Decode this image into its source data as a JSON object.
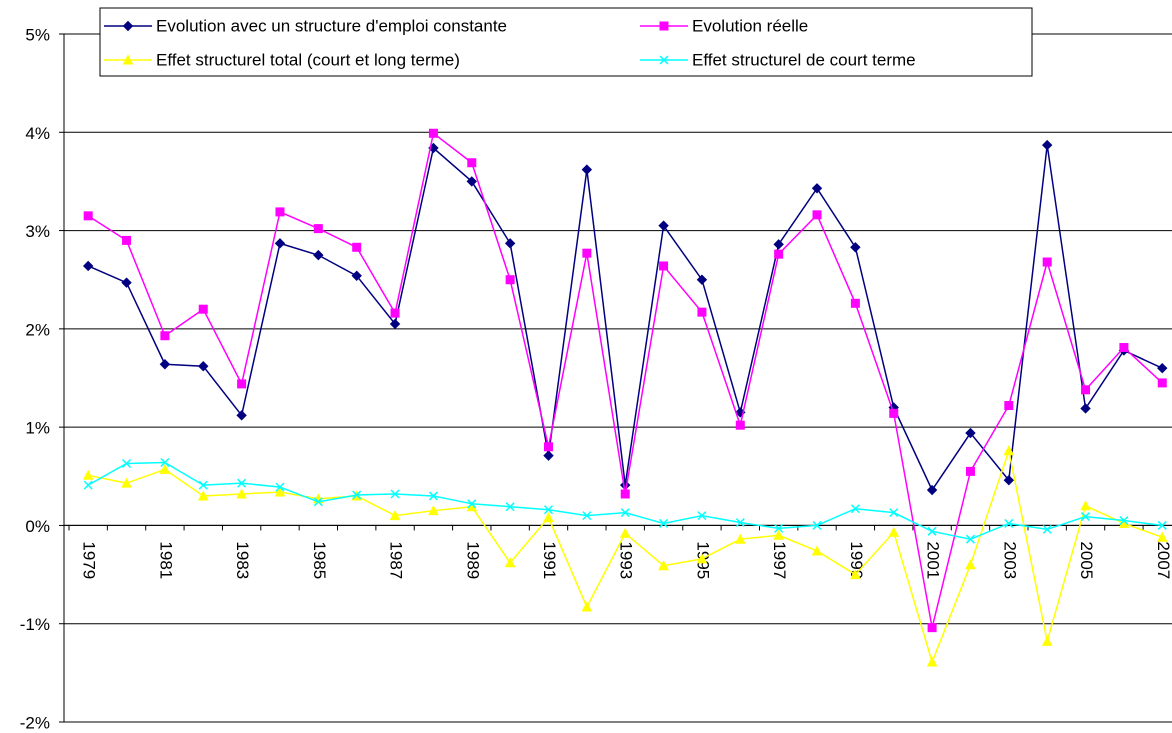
{
  "chart_data": {
    "type": "line",
    "categories": [
      "1979",
      null,
      "1981",
      null,
      "1983",
      null,
      "1985",
      null,
      "1987",
      null,
      "1989",
      null,
      "1991",
      null,
      "1993",
      null,
      "1995",
      null,
      "1997",
      null,
      "1999",
      null,
      "2001",
      null,
      "2003",
      null,
      "2005",
      null,
      "2007"
    ],
    "series": [
      {
        "name": "Evolution avec un structure d'emploi constante",
        "color": "#000080",
        "marker": "diamond",
        "values": [
          2.64,
          2.47,
          1.64,
          1.62,
          1.12,
          2.87,
          2.75,
          2.54,
          2.05,
          3.84,
          3.5,
          2.87,
          0.71,
          3.62,
          0.41,
          3.05,
          2.5,
          1.15,
          2.86,
          3.43,
          2.83,
          1.2,
          0.36,
          0.94,
          0.46,
          3.87,
          1.19,
          1.78,
          1.6
        ]
      },
      {
        "name": "Evolution réelle",
        "color": "#ff00ff",
        "marker": "square",
        "values": [
          3.15,
          2.9,
          1.93,
          2.2,
          1.44,
          3.19,
          3.02,
          2.83,
          2.16,
          3.99,
          3.69,
          2.5,
          0.8,
          2.77,
          0.32,
          2.64,
          2.17,
          1.02,
          2.76,
          3.16,
          2.26,
          1.14,
          -1.04,
          0.55,
          1.22,
          2.68,
          1.38,
          1.81,
          1.45
        ]
      },
      {
        "name": "Effet structurel total (court et long terme)",
        "color": "#ffff00",
        "marker": "triangle",
        "values": [
          0.51,
          0.43,
          0.57,
          0.3,
          0.32,
          0.34,
          0.27,
          0.3,
          0.1,
          0.15,
          0.19,
          -0.38,
          0.08,
          -0.83,
          -0.08,
          -0.41,
          -0.34,
          -0.14,
          -0.1,
          -0.26,
          -0.5,
          -0.07,
          -1.39,
          -0.4,
          0.76,
          -1.18,
          0.2,
          0.02,
          -0.12
        ]
      },
      {
        "name": "Effet structurel de court terme",
        "color": "#00ffff",
        "marker": "x",
        "values": [
          0.41,
          0.63,
          0.64,
          0.41,
          0.43,
          0.39,
          0.24,
          0.31,
          0.32,
          0.3,
          0.22,
          0.19,
          0.16,
          0.1,
          0.13,
          0.02,
          0.1,
          0.03,
          -0.03,
          0.0,
          0.17,
          0.13,
          -0.06,
          -0.14,
          0.02,
          -0.04,
          0.09,
          0.05,
          0.0
        ]
      }
    ],
    "ylim": [
      -2,
      5
    ],
    "yticks": [
      {
        "value": -2,
        "label": "-2%"
      },
      {
        "value": -1,
        "label": "-1%"
      },
      {
        "value": 0,
        "label": "0%"
      },
      {
        "value": 1,
        "label": "1%"
      },
      {
        "value": 2,
        "label": "2%"
      },
      {
        "value": 3,
        "label": "3%"
      },
      {
        "value": 4,
        "label": "4%"
      },
      {
        "value": 5,
        "label": "5%"
      }
    ],
    "grid": true,
    "legend": "top"
  }
}
